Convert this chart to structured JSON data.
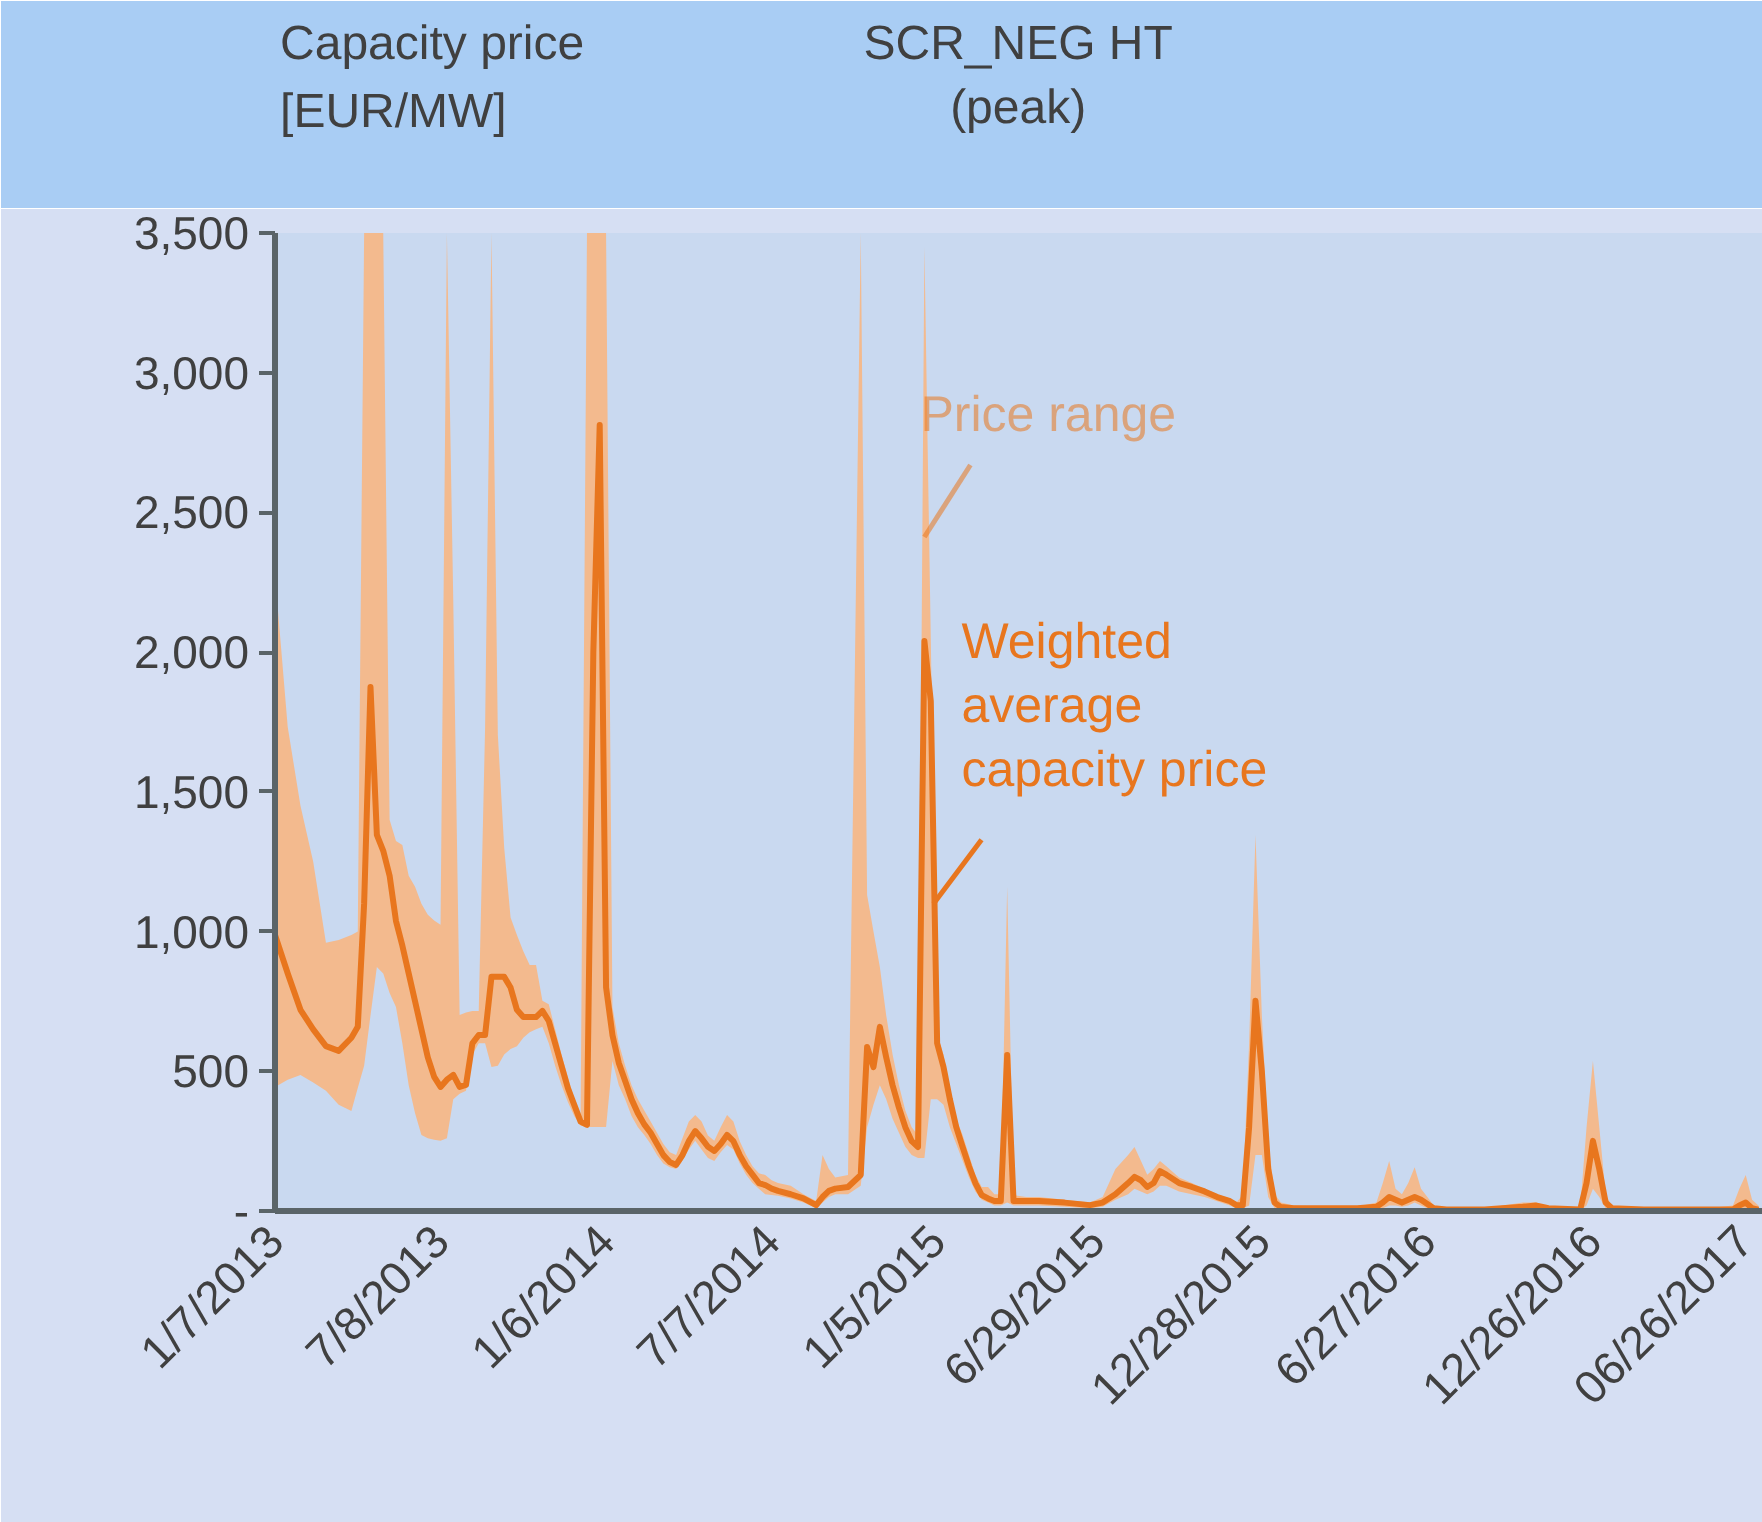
{
  "chart_data": {
    "type": "line",
    "title": "SCR_NEG HT",
    "subtitle": "(peak)",
    "ylabel": "Capacity price\n[EUR/MW]",
    "annotations": [
      {
        "text": "Price range",
        "x": "2014-12-22",
        "y": 2412
      },
      {
        "text": "Weighted\naverage\ncapacity price",
        "x": "2015-01-01",
        "y": 1100
      }
    ],
    "x": [
      "2013-01-07",
      "2013-01-21",
      "2013-02-04",
      "2013-02-18",
      "2013-03-04",
      "2013-03-18",
      "2013-04-01",
      "2013-04-08",
      "2013-04-15",
      "2013-04-22",
      "2013-04-29",
      "2013-05-06",
      "2013-05-13",
      "2013-05-20",
      "2013-05-27",
      "2013-06-03",
      "2013-06-10",
      "2013-06-17",
      "2013-06-24",
      "2013-07-01",
      "2013-07-08",
      "2013-07-15",
      "2013-07-22",
      "2013-07-29",
      "2013-08-05",
      "2013-08-12",
      "2013-08-19",
      "2013-08-26",
      "2013-09-02",
      "2013-09-09",
      "2013-09-16",
      "2013-09-23",
      "2013-09-30",
      "2013-10-07",
      "2013-10-14",
      "2013-10-21",
      "2013-10-28",
      "2013-11-04",
      "2013-11-11",
      "2013-11-18",
      "2013-11-25",
      "2013-12-02",
      "2013-12-09",
      "2013-12-16",
      "2013-12-23",
      "2013-12-30",
      "2014-01-06",
      "2014-01-13",
      "2014-01-20",
      "2014-01-27",
      "2014-02-03",
      "2014-02-10",
      "2014-02-17",
      "2014-02-24",
      "2014-03-03",
      "2014-03-10",
      "2014-03-17",
      "2014-03-24",
      "2014-03-31",
      "2014-04-07",
      "2014-04-14",
      "2014-04-21",
      "2014-04-28",
      "2014-05-05",
      "2014-05-12",
      "2014-05-19",
      "2014-05-26",
      "2014-06-02",
      "2014-06-09",
      "2014-06-16",
      "2014-06-23",
      "2014-06-30",
      "2014-07-07",
      "2014-07-14",
      "2014-07-28",
      "2014-08-11",
      "2014-08-25",
      "2014-09-01",
      "2014-09-08",
      "2014-09-15",
      "2014-09-29",
      "2014-10-13",
      "2014-10-20",
      "2014-10-27",
      "2014-11-03",
      "2014-11-10",
      "2014-11-17",
      "2014-11-24",
      "2014-12-01",
      "2014-12-08",
      "2014-12-15",
      "2014-12-22",
      "2014-12-29",
      "2015-01-05",
      "2015-01-12",
      "2015-01-19",
      "2015-01-26",
      "2015-02-02",
      "2015-02-09",
      "2015-02-16",
      "2015-02-23",
      "2015-03-02",
      "2015-03-09",
      "2015-03-16",
      "2015-03-23",
      "2015-03-30",
      "2015-04-13",
      "2015-04-27",
      "2015-05-25",
      "2015-06-22",
      "2015-07-06",
      "2015-07-20",
      "2015-08-03",
      "2015-08-10",
      "2015-08-17",
      "2015-08-24",
      "2015-08-31",
      "2015-09-07",
      "2015-09-14",
      "2015-09-28",
      "2015-10-12",
      "2015-10-26",
      "2015-11-09",
      "2015-11-23",
      "2015-11-30",
      "2015-12-07",
      "2015-12-14",
      "2015-12-21",
      "2015-12-28",
      "2016-01-04",
      "2016-01-11",
      "2016-01-18",
      "2016-02-01",
      "2016-03-07",
      "2016-04-11",
      "2016-05-02",
      "2016-05-09",
      "2016-05-16",
      "2016-05-23",
      "2016-05-30",
      "2016-06-06",
      "2016-06-13",
      "2016-06-20",
      "2016-06-27",
      "2016-07-04",
      "2016-07-18",
      "2016-08-29",
      "2016-10-10",
      "2016-10-24",
      "2016-11-07",
      "2016-12-12",
      "2016-12-19",
      "2016-12-26",
      "2017-01-02",
      "2017-01-09",
      "2017-01-16",
      "2017-02-20",
      "2017-03-27",
      "2017-05-01",
      "2017-05-29",
      "2017-06-05",
      "2017-06-12",
      "2017-06-19",
      "2017-06-26"
    ],
    "series": [
      {
        "color": "#e8761e",
        "values": [
          988,
          850,
          720,
          650,
          590,
          573,
          620,
          659,
          1100,
          1875,
          1346,
          1289,
          1200,
          1038,
          950,
          850,
          750,
          650,
          550,
          480,
          444,
          470,
          487,
          444,
          451,
          600,
          630,
          630,
          838,
          838,
          838,
          800,
          720,
          694,
          694,
          694,
          716,
          680,
          600,
          520,
          440,
          380,
          320,
          308,
          2000,
          2813,
          800,
          630,
          530,
          465,
          400,
          350,
          310,
          280,
          240,
          200,
          175,
          165,
          200,
          250,
          286,
          260,
          230,
          215,
          240,
          272,
          250,
          200,
          160,
          130,
          100,
          93,
          80,
          72,
          60,
          45,
          21,
          50,
          72,
          80,
          86,
          129,
          587,
          515,
          659,
          550,
          450,
          370,
          300,
          250,
          229,
          2040,
          1825,
          600,
          515,
          400,
          300,
          229,
          160,
          100,
          57,
          45,
          36,
          36,
          558,
          36,
          36,
          36,
          30,
          21,
          30,
          60,
          100,
          122,
          110,
          86,
          100,
          143,
          130,
          100,
          86,
          70,
          50,
          35,
          21,
          21,
          300,
          752,
          500,
          150,
          30,
          14,
          10,
          10,
          10,
          15,
          30,
          50,
          40,
          30,
          40,
          50,
          40,
          25,
          10,
          5,
          5,
          15,
          20,
          10,
          5,
          100,
          251,
          150,
          30,
          10,
          5,
          5,
          5,
          5,
          20,
          30,
          10,
          5
        ],
        "lower": [
          444,
          470,
          487,
          460,
          430,
          380,
          358,
          440,
          520,
          700,
          873,
          850,
          780,
          730,
          600,
          450,
          350,
          272,
          260,
          255,
          251,
          260,
          400,
          420,
          430,
          560,
          600,
          600,
          515,
          520,
          560,
          580,
          590,
          620,
          640,
          650,
          659,
          600,
          520,
          450,
          390,
          340,
          305,
          301,
          301,
          301,
          301,
          537,
          450,
          400,
          340,
          300,
          272,
          240,
          200,
          170,
          157,
          150,
          180,
          220,
          251,
          220,
          190,
          179,
          210,
          236,
          220,
          170,
          130,
          100,
          80,
          60,
          57,
          55,
          45,
          30,
          10,
          30,
          50,
          60,
          60,
          90,
          300,
          380,
          450,
          400,
          330,
          280,
          230,
          200,
          190,
          190,
          400,
          400,
          380,
          300,
          240,
          180,
          120,
          70,
          40,
          30,
          20,
          20,
          30,
          20,
          20,
          20,
          15,
          10,
          15,
          40,
          60,
          80,
          70,
          60,
          70,
          90,
          90,
          70,
          60,
          50,
          35,
          20,
          10,
          10,
          20,
          200,
          200,
          50,
          10,
          5,
          5,
          5,
          5,
          5,
          10,
          20,
          20,
          15,
          20,
          30,
          20,
          10,
          5,
          0,
          0,
          5,
          10,
          5,
          0,
          20,
          80,
          50,
          10,
          0,
          0,
          0,
          0,
          0,
          5,
          5,
          0,
          0
        ],
        "upper": [
          2276,
          1732,
          1450,
          1250,
          960,
          970,
          988,
          1000,
          3500,
          3500,
          3500,
          3500,
          1400,
          1324,
          1310,
          1200,
          1160,
          1100,
          1060,
          1040,
          1024,
          3500,
          2183,
          701,
          710,
          716,
          716,
          1732,
          3500,
          1704,
          1300,
          1050,
          988,
          930,
          880,
          880,
          752,
          740,
          650,
          560,
          480,
          400,
          330,
          3500,
          3500,
          3500,
          3500,
          730,
          600,
          520,
          450,
          400,
          360,
          320,
          280,
          240,
          210,
          200,
          260,
          320,
          344,
          320,
          270,
          251,
          300,
          344,
          320,
          250,
          200,
          160,
          135,
          129,
          110,
          100,
          90,
          60,
          36,
          200,
          150,
          120,
          129,
          3500,
          1131,
          1000,
          873,
          700,
          560,
          450,
          360,
          300,
          272,
          3450,
          2050,
          630,
          560,
          440,
          330,
          272,
          200,
          130,
          86,
          86,
          60,
          60,
          1160,
          57,
          50,
          50,
          40,
          30,
          50,
          150,
          200,
          229,
          180,
          130,
          150,
          179,
          160,
          120,
          100,
          80,
          60,
          45,
          30,
          57,
          600,
          1346,
          700,
          250,
          60,
          30,
          20,
          15,
          15,
          30,
          100,
          179,
          80,
          60,
          100,
          157,
          80,
          50,
          20,
          10,
          10,
          30,
          30,
          15,
          10,
          300,
          537,
          300,
          60,
          14,
          10,
          10,
          10,
          20,
          80,
          129,
          40,
          20
        ]
      }
    ],
    "xlim": [
      "2013-01-07",
      "2017-07-01"
    ],
    "xticks": [
      {
        "value": "2013-01-07",
        "label": "1/7/2013"
      },
      {
        "value": "2013-07-08",
        "label": "7/8/2013"
      },
      {
        "value": "2014-01-06",
        "label": "1/6/2014"
      },
      {
        "value": "2014-07-07",
        "label": "7/7/2014"
      },
      {
        "value": "2015-01-05",
        "label": "1/5/2015"
      },
      {
        "value": "2015-06-29",
        "label": "6/29/2015"
      },
      {
        "value": "2015-12-28",
        "label": "12/28/2015"
      },
      {
        "value": "2016-06-27",
        "label": "6/27/2016"
      },
      {
        "value": "2016-12-26",
        "label": "12/26/2016"
      },
      {
        "value": "2017-06-26",
        "label": "06/26/2017"
      }
    ],
    "ylim": [
      0,
      3500
    ],
    "yticks": [
      {
        "value": 0,
        "label": "-"
      },
      500,
      {
        "value": 1000,
        "label": "1,000"
      },
      {
        "value": 1500,
        "label": "1,500"
      },
      {
        "value": 2000,
        "label": "2,000"
      },
      {
        "value": 2500,
        "label": "2,500"
      },
      {
        "value": 3000,
        "label": "3,000"
      },
      {
        "value": 3500,
        "label": "3,500"
      }
    ],
    "grid": false
  }
}
